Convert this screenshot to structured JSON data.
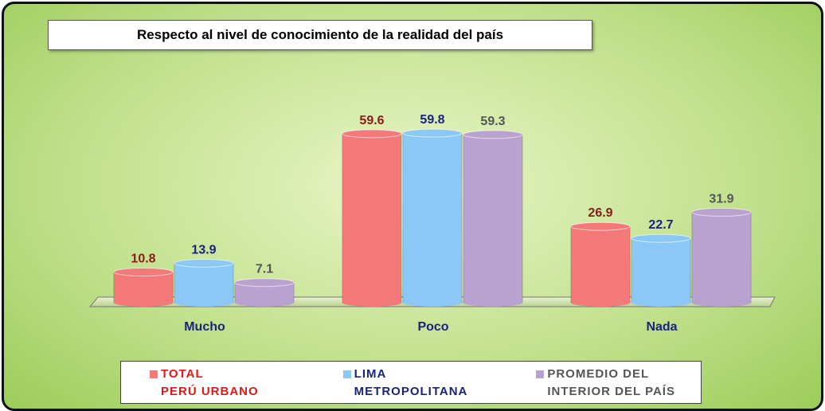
{
  "chart_data": {
    "type": "bar",
    "title": "Respecto al nivel de conocimiento de la realidad del país",
    "categories": [
      "Mucho",
      "Poco",
      "Nada"
    ],
    "series": [
      {
        "name": "TOTAL\nPERÚ URBANO",
        "color": "#f47a7a",
        "label_color": "#8b1a1a",
        "values": [
          10.8,
          59.6,
          26.9
        ]
      },
      {
        "name": "LIMA\nMETROPOLITANA",
        "color": "#8cc8f5",
        "label_color": "#1a237e",
        "values": [
          13.9,
          59.8,
          22.7
        ]
      },
      {
        "name": "PROMEDIO DEL\nINTERIOR DEL PAÍS",
        "color": "#b9a2cf",
        "label_color": "#555555",
        "values": [
          7.1,
          59.3,
          31.9
        ]
      }
    ]
  }
}
